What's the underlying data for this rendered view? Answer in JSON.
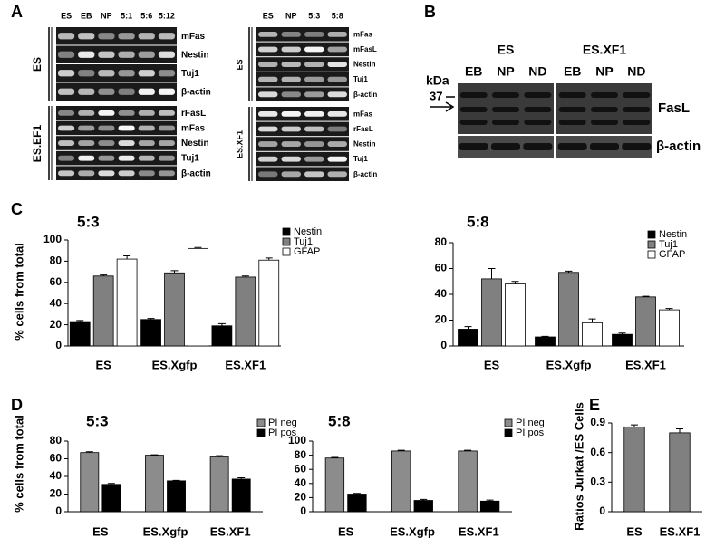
{
  "panel_labels": [
    "A",
    "B",
    "C",
    "D",
    "E"
  ],
  "panel_a": {
    "gels": [
      {
        "lanes": [
          "ES",
          "EB",
          "NP",
          "5:1",
          "5:6",
          "5:12"
        ],
        "groups": [
          {
            "name": "ES",
            "rows": [
              "mFas",
              "Nestin",
              "Tuj1",
              "β-actin"
            ]
          },
          {
            "name": "ES.EF1",
            "rows": [
              "rFasL",
              "mFas",
              "Nestin",
              "Tuj1",
              "β-actin"
            ]
          }
        ]
      },
      {
        "lanes": [
          "ES",
          "NP",
          "5:3",
          "5:8"
        ],
        "groups": [
          {
            "name": "ES",
            "rows": [
              "mFas",
              "mFasL",
              "Nestin",
              "Tuj1",
              "β-actin"
            ]
          },
          {
            "name": "ES.XF1",
            "rows": [
              "mFas",
              "rFasL",
              "Nestin",
              "Tuj1",
              "β-actin"
            ]
          }
        ]
      }
    ]
  },
  "panel_b": {
    "groups": [
      "ES",
      "ES.XF1"
    ],
    "lanes": [
      "EB",
      "NP",
      "ND"
    ],
    "unit": "kDa",
    "marker": "37",
    "rows": [
      "FasL",
      "β-actin"
    ]
  },
  "chart_data": [
    {
      "type": "bar",
      "title": "5:3",
      "ylabel": "% cells from total",
      "categories": [
        "ES",
        "ES.Xgfp",
        "ES.XF1"
      ],
      "series": [
        {
          "name": "Nestin",
          "color": "#000000",
          "values": [
            23,
            25,
            19
          ],
          "errors": [
            1,
            1,
            2
          ]
        },
        {
          "name": "Tuj1",
          "color": "#808080",
          "values": [
            66,
            69,
            65
          ],
          "errors": [
            1,
            2,
            1
          ]
        },
        {
          "name": "GFAP",
          "color": "#ffffff",
          "values": [
            82,
            92,
            81
          ],
          "errors": [
            3,
            1,
            2
          ]
        }
      ],
      "ylim": [
        0,
        100
      ],
      "yticks": [
        0,
        20,
        40,
        60,
        80,
        100
      ]
    },
    {
      "type": "bar",
      "title": "5:8",
      "categories": [
        "ES",
        "ES.Xgfp",
        "ES.XF1"
      ],
      "series": [
        {
          "name": "Nestin",
          "color": "#000000",
          "values": [
            13,
            7,
            9
          ],
          "errors": [
            2,
            0.5,
            1
          ]
        },
        {
          "name": "Tuj1",
          "color": "#808080",
          "values": [
            52,
            57,
            38
          ],
          "errors": [
            8,
            1,
            0.5
          ]
        },
        {
          "name": "GFAP",
          "color": "#ffffff",
          "values": [
            48,
            18,
            28
          ],
          "errors": [
            2,
            3,
            1
          ]
        }
      ],
      "ylim": [
        0,
        80
      ],
      "yticks": [
        0,
        20,
        40,
        60,
        80
      ]
    },
    {
      "type": "bar",
      "title": "5:3",
      "ylabel": "% cells from total",
      "categories": [
        "ES",
        "ES.Xgfp",
        "ES.XF1"
      ],
      "series": [
        {
          "name": "PI neg",
          "color": "#8c8c8c",
          "values": [
            67,
            64,
            62
          ],
          "errors": [
            1,
            0.5,
            1.5
          ]
        },
        {
          "name": "PI pos",
          "color": "#000000",
          "values": [
            31,
            35,
            37
          ],
          "errors": [
            1,
            0.5,
            1.5
          ]
        }
      ],
      "ylim": [
        0,
        80
      ],
      "yticks": [
        0,
        20,
        40,
        60,
        80
      ]
    },
    {
      "type": "bar",
      "title": "5:8",
      "categories": [
        "ES",
        "ES.Xgfp",
        "ES.XF1"
      ],
      "series": [
        {
          "name": "PI neg",
          "color": "#8c8c8c",
          "values": [
            76,
            86,
            86
          ],
          "errors": [
            1,
            1,
            1
          ]
        },
        {
          "name": "PI pos",
          "color": "#000000",
          "values": [
            25,
            16,
            15
          ],
          "errors": [
            1,
            1.5,
            1.5
          ]
        }
      ],
      "ylim": [
        0,
        100
      ],
      "yticks": [
        0,
        20,
        40,
        60,
        80,
        100
      ]
    },
    {
      "type": "bar",
      "ylabel": "Ratios Jurkat /ES Cells",
      "categories": [
        "ES",
        "ES.XF1"
      ],
      "values": [
        0.86,
        0.8
      ],
      "errors": [
        0.02,
        0.04
      ],
      "color": "#808080",
      "ylim": [
        0,
        0.9
      ],
      "yticks": [
        0,
        0.3,
        0.6,
        0.9
      ]
    }
  ]
}
